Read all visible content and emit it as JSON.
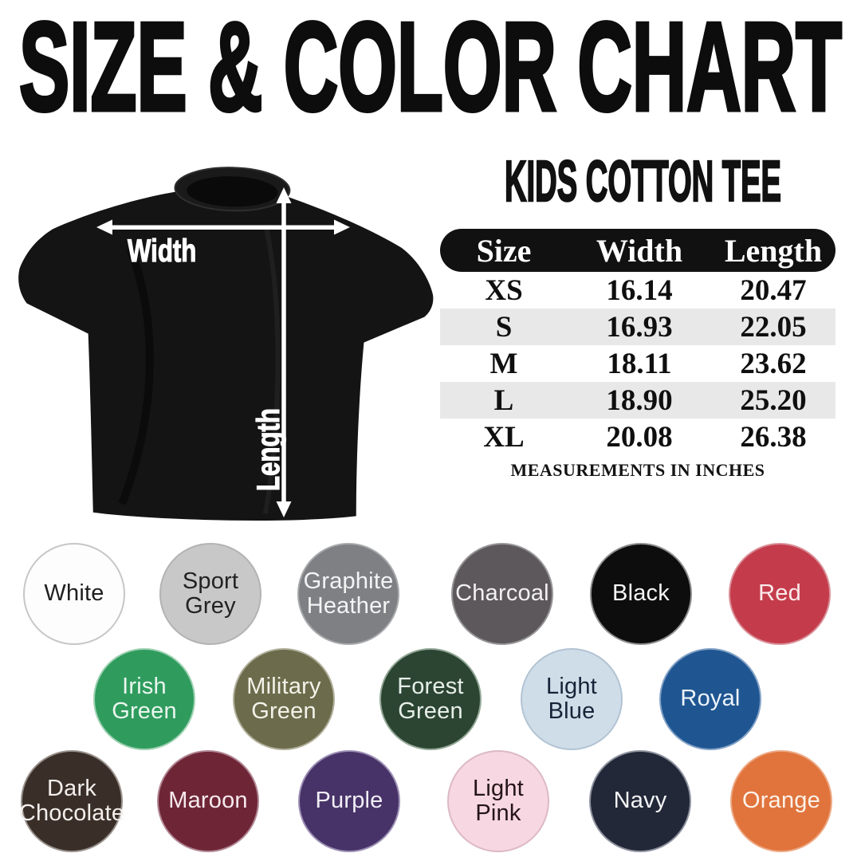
{
  "title": "SIZE & COLOR CHART",
  "product": {
    "name": "KIDS COTTON TEE"
  },
  "shirt_diagram": {
    "width_label": "Width",
    "length_label": "Length",
    "shirt_color_shown": "#141414"
  },
  "size_table": {
    "columns": [
      "Size",
      "Width",
      "Length"
    ],
    "rows": [
      {
        "size": "XS",
        "width": "16.14",
        "length": "20.47"
      },
      {
        "size": "S",
        "width": "16.93",
        "length": "22.05"
      },
      {
        "size": "M",
        "width": "18.11",
        "length": "23.62"
      },
      {
        "size": "L",
        "width": "18.90",
        "length": "25.20"
      },
      {
        "size": "XL",
        "width": "20.08",
        "length": "26.38"
      }
    ],
    "footnote": "MEASUREMENTS IN INCHES",
    "header_bg": "#111111",
    "stripe_bg": "#e9e8e9"
  },
  "colors": [
    {
      "name": "White",
      "bg": "#fdfdfd",
      "text": "#1f1f1f",
      "border": "#c6c6c6"
    },
    {
      "name": "Sport Grey",
      "bg": "#c7c8c7",
      "text": "#222222",
      "border": "#b2b3b2"
    },
    {
      "name": "Graphite Heather",
      "bg": "#7e8084",
      "text": "#f4f4f5",
      "border": "#a7a9ac"
    },
    {
      "name": "Charcoal",
      "bg": "#5c585b",
      "text": "#f2f1f2",
      "border": "#989698"
    },
    {
      "name": "Black",
      "bg": "#0d0d0d",
      "text": "#f5f5f5",
      "border": "#8e8e8e"
    },
    {
      "name": "Red",
      "bg": "#c43c4b",
      "text": "#fbeaec",
      "border": "#d98f98"
    },
    {
      "name": "Irish Green",
      "bg": "#2f9c5e",
      "text": "#eaf6ee",
      "border": "#9ed1b2"
    },
    {
      "name": "Military Green",
      "bg": "#6c6b4b",
      "text": "#f2f2e9",
      "border": "#b1b09c"
    },
    {
      "name": "Forest Green",
      "bg": "#2c4533",
      "text": "#e7efe9",
      "border": "#94a897"
    },
    {
      "name": "Light Blue",
      "bg": "#cfdde9",
      "text": "#172338",
      "border": "#b2c3d3"
    },
    {
      "name": "Royal",
      "bg": "#1f5692",
      "text": "#eef4fb",
      "border": "#83a2c6"
    },
    {
      "name": "Dark Chocolate",
      "bg": "#3a2f28",
      "text": "#f3efec",
      "border": "#99918c"
    },
    {
      "name": "Maroon",
      "bg": "#6e2637",
      "text": "#f7eaee",
      "border": "#b28794"
    },
    {
      "name": "Purple",
      "bg": "#473367",
      "text": "#f1eef7",
      "border": "#9d90b5"
    },
    {
      "name": "Light Pink",
      "bg": "#f7d7e1",
      "text": "#241419",
      "border": "#dcb9c5"
    },
    {
      "name": "Navy",
      "bg": "#232838",
      "text": "#f3f4f6",
      "border": "#8f93a0"
    },
    {
      "name": "Orange",
      "bg": "#e0743c",
      "text": "#fdf2ea",
      "border": "#eda985"
    }
  ]
}
